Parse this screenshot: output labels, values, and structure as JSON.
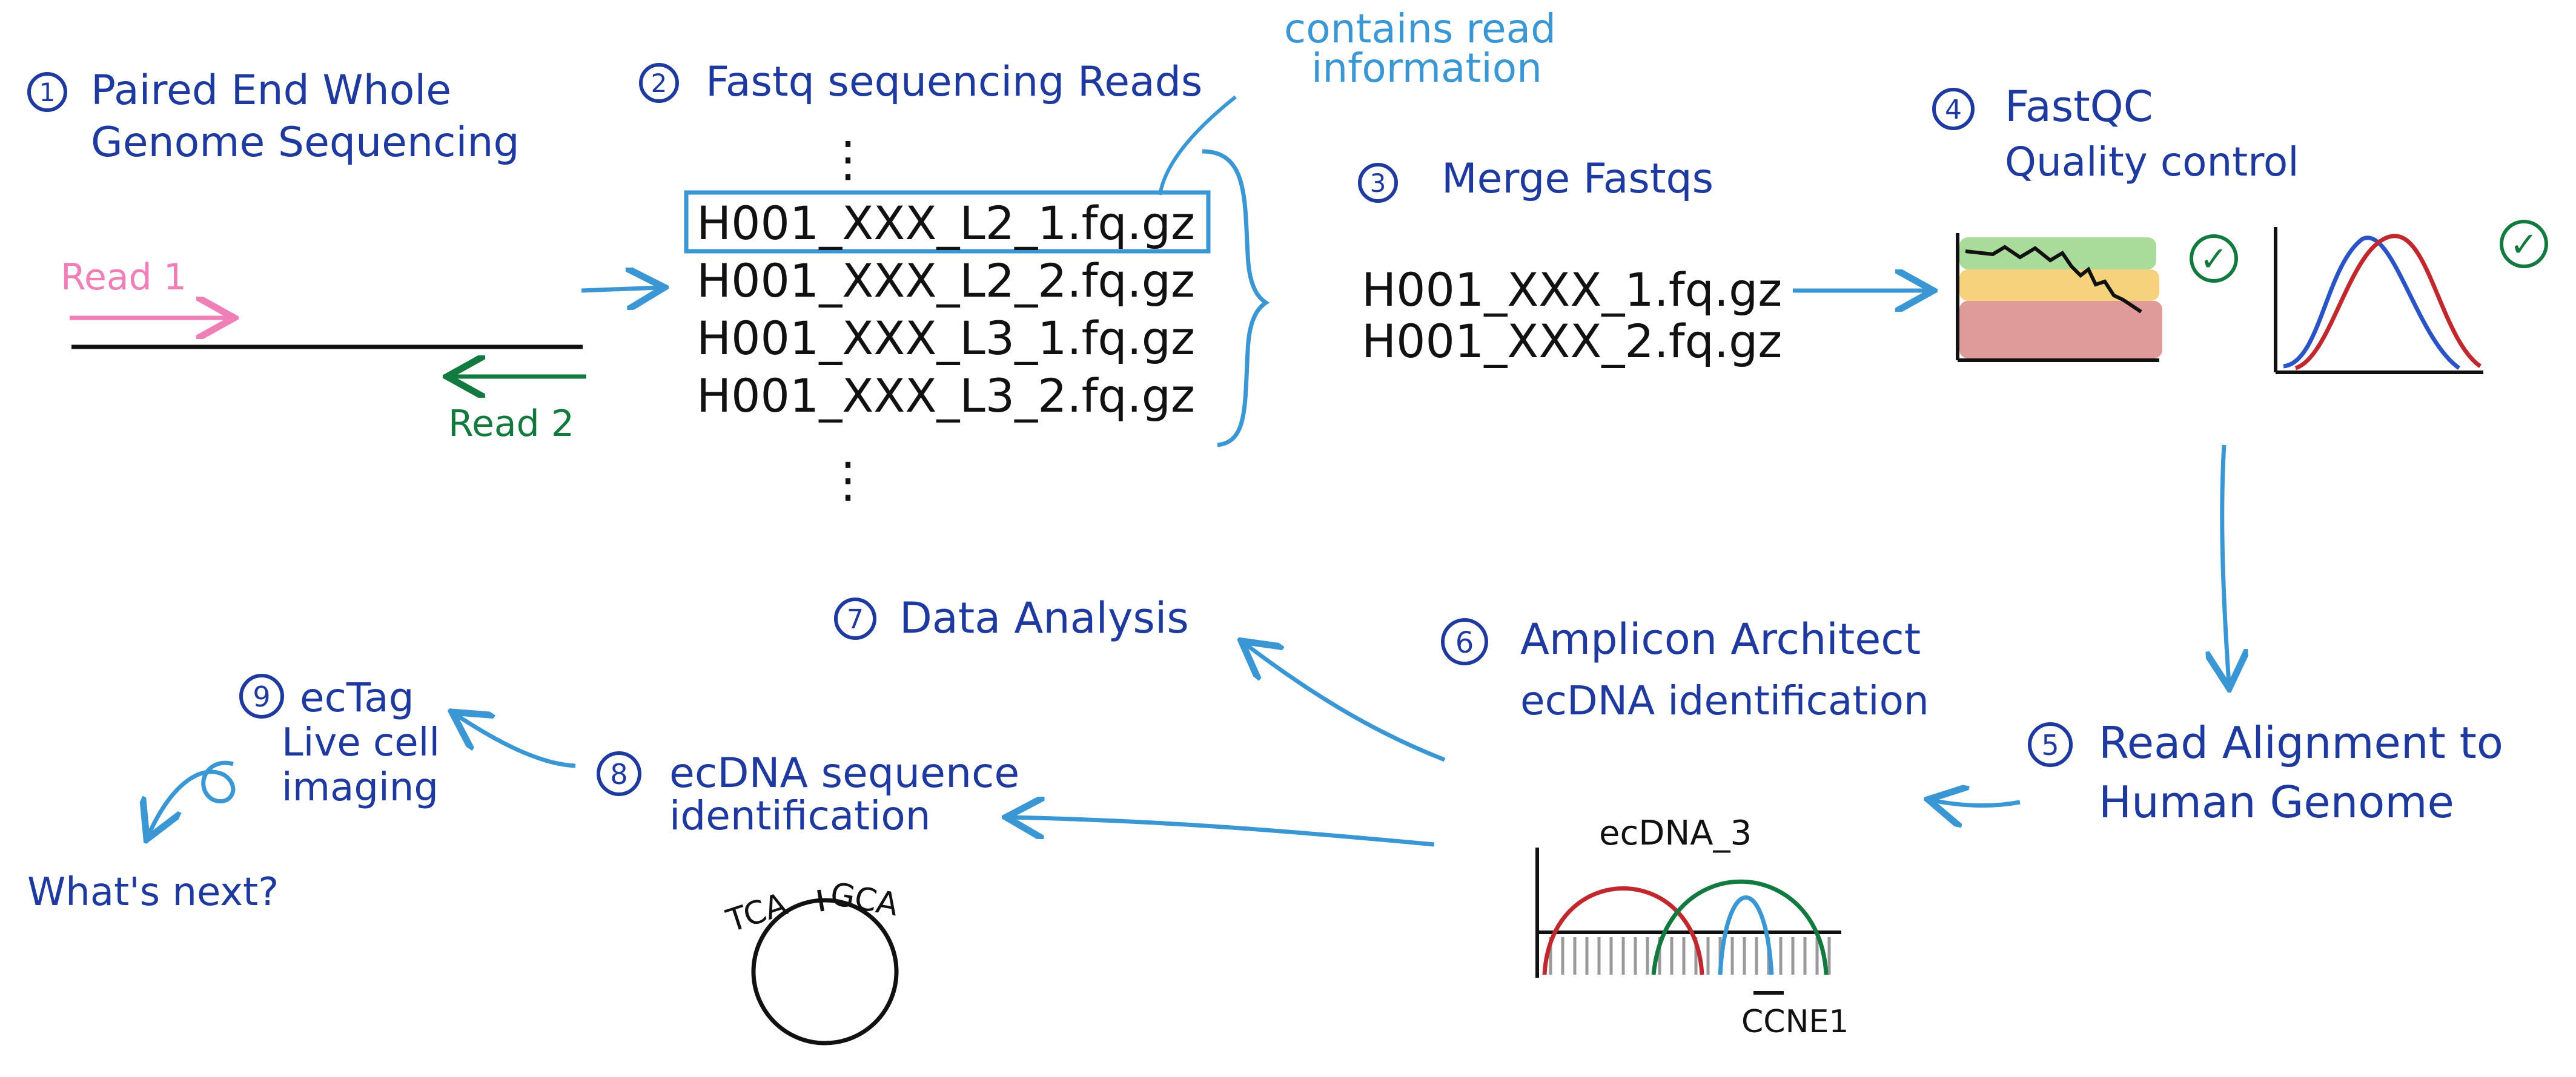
{
  "colors": {
    "navy": "#1f3a9f",
    "light_blue": "#3a97d4",
    "pink": "#ef7fb7",
    "green": "#137a3f",
    "red": "#c0282d",
    "ink": "#111111",
    "quality_green": "#a9dc9a",
    "quality_yellow": "#f6d27c",
    "quality_red": "#df9a9a"
  },
  "step1": {
    "num": "1",
    "title_line1": "Paired End Whole",
    "title_line2": "Genome Sequencing",
    "read1": "Read 1",
    "read2": "Read 2"
  },
  "step2": {
    "num": "2",
    "title": "Fastq sequencing Reads",
    "callout_line1": "contains read",
    "callout_line2": "information",
    "ellipsis": "⋮",
    "files": [
      "H001_XXX_L2_1.fq.gz",
      "H001_XXX_L2_2.fq.gz",
      "H001_XXX_L3_1.fq.gz",
      "H001_XXX_L3_2.fq.gz"
    ]
  },
  "step3": {
    "num": "3",
    "title": "Merge Fastqs",
    "files": [
      "H001_XXX_1.fq.gz",
      "H001_XXX_2.fq.gz"
    ]
  },
  "step4": {
    "num": "4",
    "title_line1": "FastQC",
    "title_line2": "Quality control",
    "check": "✓"
  },
  "step5": {
    "num": "5",
    "title_line1": "Read Alignment to",
    "title_line2": "Human Genome"
  },
  "step6": {
    "num": "6",
    "title_line1": "Amplicon Architect",
    "title_line2": "ecDNA identification",
    "plot_label": "ecDNA_3",
    "gene_label": "CCNE1"
  },
  "step7": {
    "num": "7",
    "title": "Data Analysis"
  },
  "step8": {
    "num": "8",
    "title_line1": "ecDNA sequence",
    "title_line2": "identification",
    "seq_left": "TCA",
    "seq_right": "GCA"
  },
  "step9": {
    "num": "9",
    "title_line1": "ecTag",
    "title_line2": "Live cell",
    "title_line3": "imaging",
    "next": "What's next?"
  }
}
